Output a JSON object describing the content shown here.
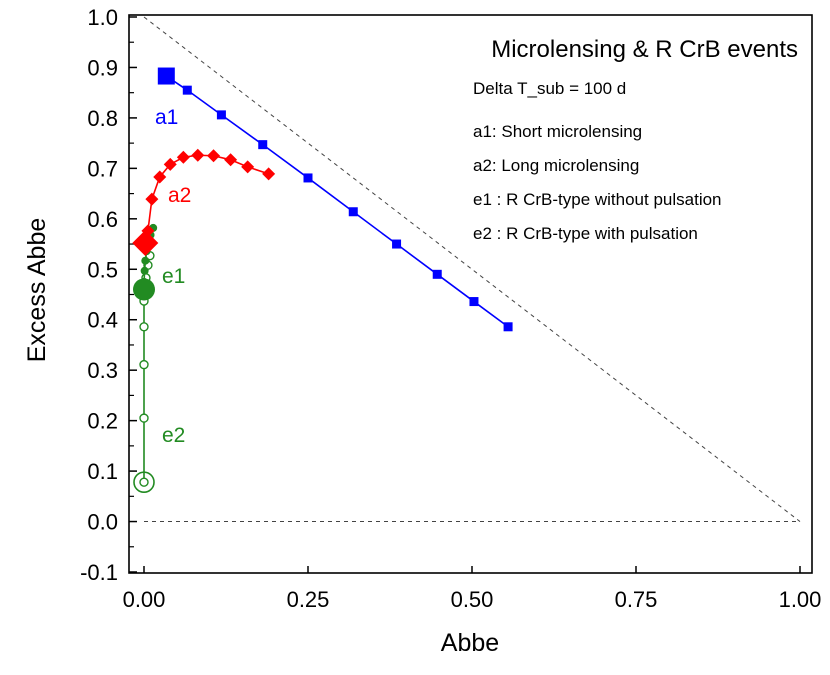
{
  "chart_data": {
    "type": "scatter",
    "title": "Microlensing & R CrB events",
    "subtitle": "Delta T_sub = 100 d",
    "xlabel": "Abbe",
    "ylabel": "Excess Abbe",
    "xlim": [
      0.0,
      1.0
    ],
    "ylim": [
      -0.1,
      1.0
    ],
    "xticks": [
      "0.00",
      "0.25",
      "0.50",
      "0.75",
      "1.00"
    ],
    "xtick_values": [
      0.0,
      0.25,
      0.5,
      0.75,
      1.0
    ],
    "yticks": [
      "-0.1",
      "0.0",
      "0.1",
      "0.2",
      "0.3",
      "0.4",
      "0.5",
      "0.6",
      "0.7",
      "0.8",
      "0.9",
      "1.0"
    ],
    "ytick_values": [
      -0.1,
      0.0,
      0.1,
      0.2,
      0.3,
      0.4,
      0.5,
      0.6,
      0.7,
      0.8,
      0.9,
      1.0
    ],
    "grid": false,
    "reference_lines": [
      {
        "style": "dashed",
        "x": [
          0.0,
          1.0
        ],
        "y": [
          1.0,
          0.0
        ]
      },
      {
        "style": "dashed",
        "x": [
          0.0,
          1.0
        ],
        "y": [
          0.0,
          0.0
        ]
      }
    ],
    "legend": [
      "a1: Short microlensing",
      "a2: Long microlensing",
      "e1 : R CrB-type without pulsation",
      "e2 : R CrB-type with pulsation"
    ],
    "series": [
      {
        "name": "a1",
        "color": "#0000ff",
        "marker": "square",
        "start_marker": "big-square",
        "x": [
          0.034,
          0.066,
          0.118,
          0.181,
          0.25,
          0.319,
          0.385,
          0.447,
          0.503,
          0.555
        ],
        "y": [
          0.883,
          0.855,
          0.806,
          0.747,
          0.681,
          0.614,
          0.55,
          0.49,
          0.436,
          0.386
        ]
      },
      {
        "name": "a2",
        "color": "#ff0000",
        "marker": "diamond",
        "start_marker": "big-diamond",
        "x": [
          0.002,
          0.006,
          0.012,
          0.024,
          0.04,
          0.06,
          0.082,
          0.106,
          0.132,
          0.158,
          0.19
        ],
        "y": [
          0.552,
          0.576,
          0.639,
          0.683,
          0.708,
          0.722,
          0.726,
          0.725,
          0.717,
          0.703,
          0.689
        ]
      },
      {
        "name": "e1",
        "color": "#228b22",
        "marker": "filled-circle",
        "start_marker": "big-circle",
        "x": [
          0.0,
          0.0,
          0.001,
          0.002,
          0.004,
          0.007,
          0.01,
          0.014
        ],
        "y": [
          0.46,
          0.475,
          0.497,
          0.517,
          0.536,
          0.552,
          0.568,
          0.582
        ]
      },
      {
        "name": "e2",
        "color": "#228b22",
        "marker": "open-circle",
        "start_marker": "ringed-circle",
        "x": [
          0.0,
          0.0,
          0.0,
          0.0,
          0.0,
          0.001,
          0.003,
          0.006,
          0.009
        ],
        "y": [
          0.078,
          0.205,
          0.311,
          0.386,
          0.437,
          0.458,
          0.483,
          0.508,
          0.527
        ]
      }
    ]
  }
}
